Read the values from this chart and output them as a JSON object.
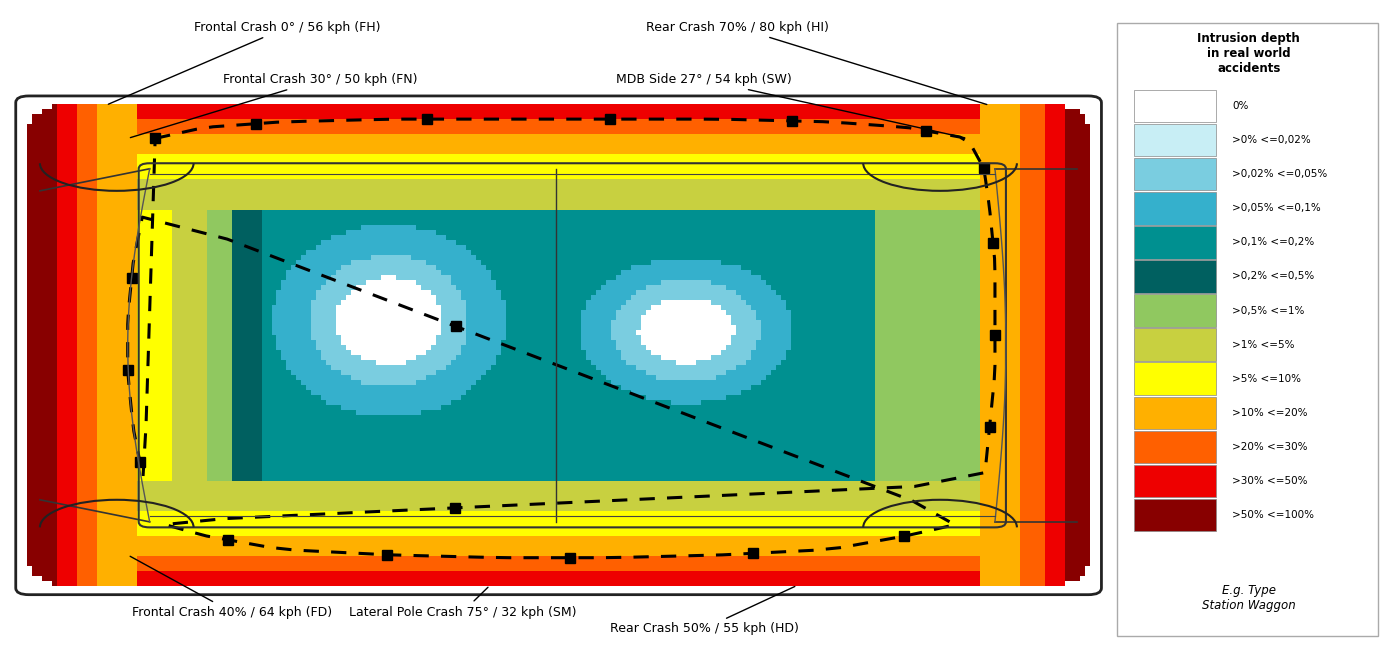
{
  "legend_title": "Intrusion depth\nin real world\naccidents",
  "legend_labels": [
    "0%",
    ">0% <=0,02%",
    ">0,02% <=0,05%",
    ">0,05% <=0,1%",
    ">0,1% <=0,2%",
    ">0,2% <=0,5%",
    ">0,5% <=1%",
    ">1% <=5%",
    ">5% <=10%",
    ">10% <=20%",
    ">20% <=30%",
    ">30% <=50%",
    ">50% <=100%"
  ],
  "legend_colors": [
    "#ffffff",
    "#c8eef5",
    "#7acde0",
    "#35b0cc",
    "#009090",
    "#006060",
    "#90c860",
    "#c8d040",
    "#ffff00",
    "#ffb000",
    "#ff6000",
    "#ee0000",
    "#880000"
  ],
  "footer_text": "E.g. Type\nStation Waggon",
  "figure_width": 13.93,
  "figure_height": 6.52,
  "bg_color": "#ffffff"
}
